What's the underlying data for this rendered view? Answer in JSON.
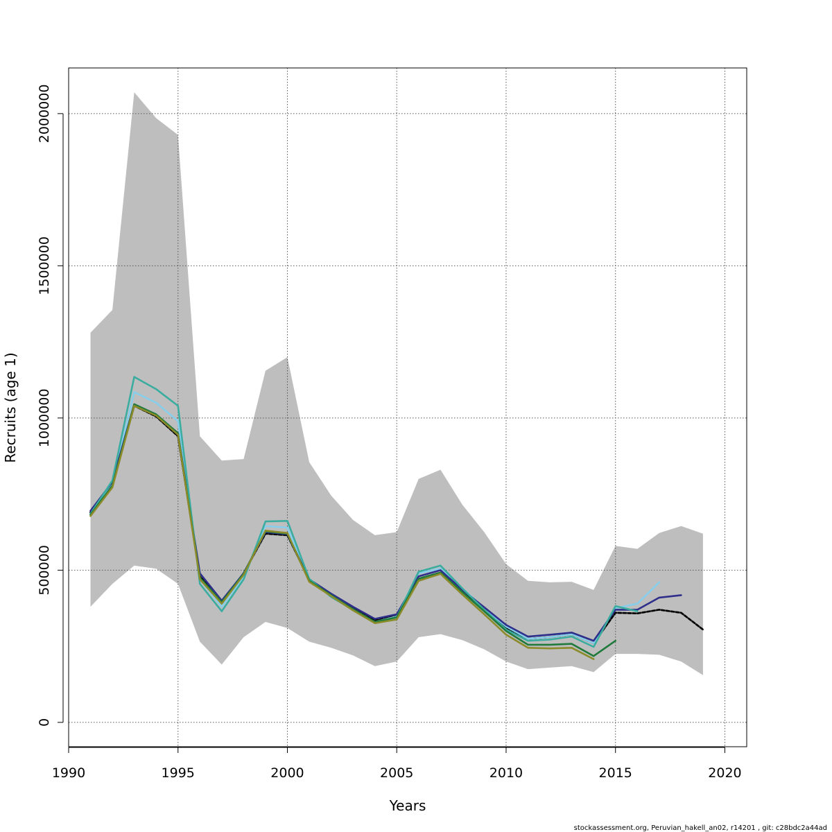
{
  "chart_data": {
    "type": "line",
    "title": "",
    "xlabel": "Years",
    "ylabel": "Recruits (age 1)",
    "xlim": [
      1990,
      2021
    ],
    "ylim": [
      -80000,
      2150000
    ],
    "x_ticks": [
      1990,
      1995,
      2000,
      2005,
      2010,
      2015,
      2020
    ],
    "y_ticks": [
      0,
      500000,
      1000000,
      1500000,
      2000000
    ],
    "x_tick_labels": [
      "1990",
      "1995",
      "2000",
      "2005",
      "2010",
      "2015",
      "2020"
    ],
    "y_tick_labels": [
      "0",
      "500000",
      "1000000",
      "1500000",
      "2000000"
    ],
    "grid": true,
    "legend": "none",
    "band": {
      "color": "#bebebe",
      "x": [
        1991,
        1992,
        1993,
        1994,
        1995,
        1996,
        1997,
        1998,
        1999,
        2000,
        2001,
        2002,
        2003,
        2004,
        2005,
        2006,
        2007,
        2008,
        2009,
        2010,
        2011,
        2012,
        2013,
        2014,
        2015,
        2016,
        2017,
        2018,
        2019
      ],
      "upper": [
        1280000,
        1355000,
        2070000,
        1985000,
        1930000,
        940000,
        860000,
        865000,
        1155000,
        1200000,
        855000,
        745000,
        665000,
        615000,
        625000,
        800000,
        830000,
        715000,
        625000,
        520000,
        465000,
        460000,
        462000,
        435000,
        580000,
        570000,
        622000,
        645000,
        620000
      ],
      "lower": [
        380000,
        455000,
        515000,
        505000,
        455000,
        265000,
        190000,
        280000,
        330000,
        310000,
        265000,
        245000,
        220000,
        185000,
        200000,
        280000,
        290000,
        270000,
        240000,
        200000,
        175000,
        180000,
        185000,
        165000,
        225000,
        225000,
        222000,
        200000,
        155000
      ]
    },
    "series": [
      {
        "color": "#555555",
        "dashed": false,
        "x": [
          1991,
          1992,
          1993,
          1994,
          1995,
          1996,
          1997,
          1998,
          1999,
          2000,
          2001,
          2002,
          2003,
          2004,
          2005,
          2006,
          2007,
          2008,
          2009,
          2010,
          2011,
          2012,
          2013,
          2014,
          2015,
          2016,
          2017,
          2018,
          2019
        ],
        "values": [
          690000,
          780000,
          1040000,
          1005000,
          940000,
          480000,
          395000,
          490000,
          620000,
          615000,
          468000,
          420000,
          375000,
          335000,
          350000,
          472000,
          492000,
          430000,
          370000,
          310000,
          275000,
          280000,
          290000,
          260000,
          360000,
          358000,
          370000,
          360000,
          305000
        ]
      },
      {
        "color": "#000000",
        "dashed": true,
        "x": [
          1991,
          1992,
          1993,
          1994,
          1995,
          1996,
          1997,
          1998,
          1999,
          2000,
          2001,
          2002,
          2003,
          2004,
          2005,
          2006,
          2007,
          2008,
          2009,
          2010,
          2011,
          2012,
          2013,
          2014,
          2015,
          2016,
          2017,
          2018,
          2019
        ],
        "values": [
          690000,
          780000,
          1040000,
          1005000,
          940000,
          480000,
          395000,
          490000,
          620000,
          615000,
          468000,
          420000,
          375000,
          335000,
          350000,
          472000,
          492000,
          430000,
          370000,
          310000,
          275000,
          280000,
          290000,
          260000,
          360000,
          358000,
          370000,
          360000,
          305000
        ]
      },
      {
        "color": "#87ceeb",
        "dashed": false,
        "x": [
          1991,
          1992,
          1993,
          1994,
          1995,
          1996,
          1997,
          1998,
          1999,
          2000,
          2001,
          2002,
          2003,
          2004,
          2005,
          2006,
          2007,
          2008,
          2009,
          2010,
          2011,
          2012,
          2013,
          2014,
          2015,
          2016,
          2017
        ],
        "values": [
          685000,
          785000,
          1085000,
          1050000,
          990000,
          470000,
          380000,
          480000,
          645000,
          640000,
          470000,
          415000,
          372000,
          330000,
          348000,
          490000,
          505000,
          440000,
          375000,
          315000,
          275000,
          280000,
          290000,
          260000,
          375000,
          390000,
          460000
        ]
      },
      {
        "color": "#2e2e8b",
        "dashed": false,
        "x": [
          1991,
          1992,
          1993,
          1994,
          1995,
          1996,
          1997,
          1998,
          1999,
          2000,
          2001,
          2002,
          2003,
          2004,
          2005,
          2006,
          2007,
          2008,
          2009,
          2010,
          2011,
          2012,
          2013,
          2014,
          2015,
          2016,
          2017,
          2018
        ],
        "values": [
          695000,
          790000,
          1045000,
          1010000,
          950000,
          490000,
          400000,
          490000,
          625000,
          618000,
          470000,
          423000,
          380000,
          340000,
          355000,
          480000,
          500000,
          435000,
          378000,
          320000,
          282000,
          288000,
          295000,
          268000,
          370000,
          370000,
          410000,
          418000
        ]
      },
      {
        "color": "#3aada0",
        "dashed": false,
        "x": [
          1991,
          1992,
          1993,
          1994,
          1995,
          1996,
          1997,
          1998,
          1999,
          2000,
          2001,
          2002,
          2003,
          2004,
          2005,
          2006,
          2007,
          2008,
          2009,
          2010,
          2011,
          2012,
          2013,
          2014,
          2015,
          2016
        ],
        "values": [
          685000,
          795000,
          1135000,
          1095000,
          1040000,
          455000,
          365000,
          470000,
          660000,
          662000,
          472000,
          412000,
          370000,
          330000,
          345000,
          495000,
          515000,
          440000,
          370000,
          305000,
          268000,
          272000,
          282000,
          248000,
          382000,
          365000
        ]
      },
      {
        "color": "#1f7a3c",
        "dashed": false,
        "x": [
          1991,
          1992,
          1993,
          1994,
          1995,
          1996,
          1997,
          1998,
          1999,
          2000,
          2001,
          2002,
          2003,
          2004,
          2005,
          2006,
          2007,
          2008,
          2009,
          2010,
          2011,
          2012,
          2013,
          2014,
          2015
        ],
        "values": [
          682000,
          778000,
          1045000,
          1012000,
          950000,
          475000,
          395000,
          488000,
          628000,
          620000,
          465000,
          418000,
          372000,
          330000,
          345000,
          472000,
          492000,
          428000,
          365000,
          300000,
          255000,
          255000,
          258000,
          218000,
          268000
        ]
      },
      {
        "color": "#8b8b2a",
        "dashed": false,
        "x": [
          1991,
          1992,
          1993,
          1994,
          1995,
          1996,
          1997,
          1998,
          1999,
          2000,
          2001,
          2002,
          2003,
          2004,
          2005,
          2006,
          2007,
          2008,
          2009,
          2010,
          2011,
          2012,
          2013,
          2014
        ],
        "values": [
          678000,
          772000,
          1040000,
          1008000,
          945000,
          470000,
          390000,
          485000,
          630000,
          622000,
          462000,
          415000,
          368000,
          326000,
          338000,
          465000,
          488000,
          420000,
          355000,
          288000,
          245000,
          243000,
          245000,
          208000
        ]
      }
    ]
  },
  "footer": {
    "source_text": "stockassessment.org, Peruvian_hakell_an02, r14201 , git: c28bdc2a44ad"
  }
}
